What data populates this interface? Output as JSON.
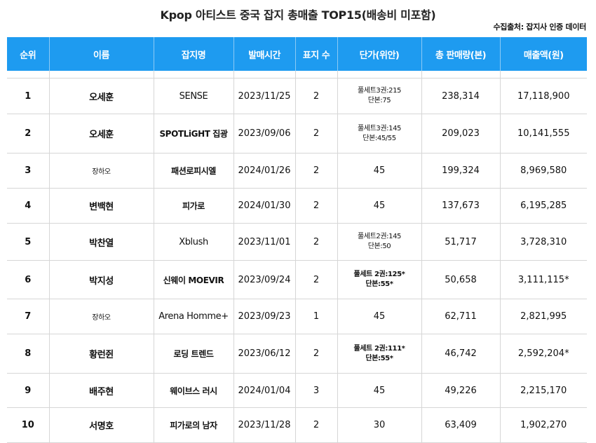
{
  "title": "Kpop 아티스트 중국 잡지 총매출 TOP15(배송비 미포함)",
  "source": "수집출처: 잡지사 인증 데이터",
  "headers": [
    "순위",
    "이름",
    "잡지명",
    "발매시간",
    "표지 수",
    "단가(위안)",
    "총 판매량(본)",
    "매출액(원)"
  ],
  "rows": [
    {
      "rank": "1",
      "name": "오세훈",
      "magazine": "SENSE",
      "date": "2023/11/25",
      "covers": "2",
      "price": [
        "풀세트3권:215",
        "단본:75"
      ],
      "sales": "238,314",
      "revenue": "17,118,900"
    },
    {
      "rank": "2",
      "name": "오세훈",
      "magazine": "SPOTLiGHT 집광",
      "date": "2023/09/06",
      "covers": "2",
      "price": [
        "풀세트3권:145",
        "단본:45/55"
      ],
      "sales": "209,023",
      "revenue": "10,141,555"
    },
    {
      "rank": "3",
      "name": "장하오",
      "magazine": "패션로피시엘",
      "date": "2024/01/26",
      "covers": "2",
      "price": [
        "45"
      ],
      "sales": "199,324",
      "revenue": "8,969,580"
    },
    {
      "rank": "4",
      "name": "변백현",
      "magazine": "피가로",
      "date": "2024/01/30",
      "covers": "2",
      "price": [
        "45"
      ],
      "sales": "137,673",
      "revenue": "6,195,285"
    },
    {
      "rank": "5",
      "name": "박찬열",
      "magazine": "Xblush",
      "date": "2023/11/01",
      "covers": "2",
      "price": [
        "풀세트2권:145",
        "단본:50"
      ],
      "sales": "51,717",
      "revenue": "3,728,310"
    },
    {
      "rank": "6",
      "name": "박지성",
      "magazine": "신웨이 MOEVIR",
      "date": "2023/09/24",
      "covers": "2",
      "price": [
        "풀세트 2권:125*",
        "단본:55*"
      ],
      "sales": "50,658",
      "revenue": "3,111,115*"
    },
    {
      "rank": "7",
      "name": "장하오",
      "magazine": "Arena Homme+",
      "date": "2023/09/23",
      "covers": "1",
      "price": [
        "45"
      ],
      "sales": "62,711",
      "revenue": "2,821,995"
    },
    {
      "rank": "8",
      "name": "황런쥔",
      "magazine": "로딩 트렌드",
      "date": "2023/06/12",
      "covers": "2",
      "price": [
        "풀세트 2권:111*",
        "단본:55*"
      ],
      "sales": "46,742",
      "revenue": "2,592,204*"
    },
    {
      "rank": "9",
      "name": "배주현",
      "magazine": "웨이브스 러시",
      "date": "2024/01/04",
      "covers": "3",
      "price": [
        "45"
      ],
      "sales": "49,226",
      "revenue": "2,215,170"
    },
    {
      "rank": "10",
      "name": "서명호",
      "magazine": "피가로의 남자",
      "date": "2023/11/28",
      "covers": "2",
      "price": [
        "30"
      ],
      "sales": "63,409",
      "revenue": "1,902,270"
    }
  ]
}
